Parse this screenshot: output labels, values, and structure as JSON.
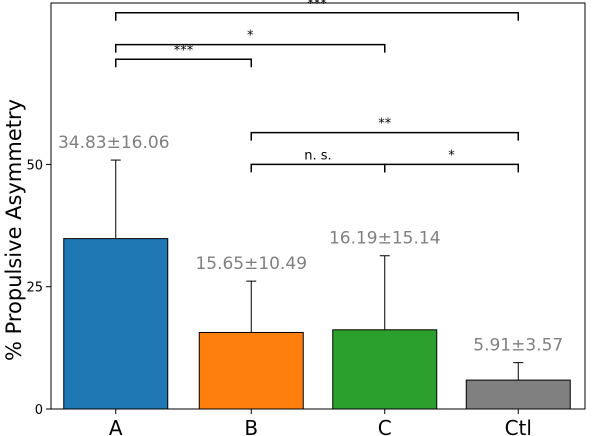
{
  "chart_data": {
    "type": "bar",
    "ylabel": "% Propulsive Asymmetry",
    "xlabel": "",
    "title": "",
    "ylim": [
      0,
      83
    ],
    "yticks": [
      0,
      25,
      50
    ],
    "categories": [
      "A",
      "B",
      "C",
      "Ctl"
    ],
    "values": [
      34.83,
      15.65,
      16.19,
      5.91
    ],
    "errors": [
      16.06,
      10.49,
      15.14,
      3.57
    ],
    "colors": [
      "#1f77b4",
      "#ff7f0e",
      "#2ca02c",
      "#808080"
    ],
    "data_labels": [
      "34.83±16.06",
      "15.65±10.49",
      "16.19±15.14",
      "5.91±3.57"
    ],
    "significance": [
      {
        "from": 0,
        "to": 3,
        "label": "***",
        "y": 81
      },
      {
        "from": 0,
        "to": 2,
        "label": "*",
        "y": 74.5
      },
      {
        "from": 0,
        "to": 1,
        "label": "***",
        "y": 71.5,
        "note": ""
      },
      {
        "from": 1,
        "to": 3,
        "label": "**",
        "y": 56.5
      },
      {
        "from": 1,
        "to": 2,
        "label": "n. s.",
        "y": 50
      },
      {
        "from": 2,
        "to": 3,
        "label": "*",
        "y": 50
      }
    ]
  }
}
